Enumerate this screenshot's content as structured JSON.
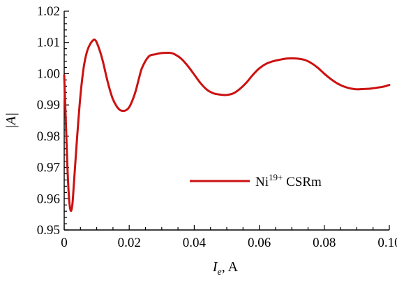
{
  "chart_data": {
    "type": "line",
    "title": "",
    "xlabel": {
      "symbol": "I",
      "subscript": "e",
      "unit": ", A"
    },
    "ylabel": "|A|",
    "xlim": [
      0,
      0.1
    ],
    "ylim": [
      0.95,
      1.02
    ],
    "xticks": [
      0,
      0.02,
      0.04,
      0.06,
      0.08,
      0.1
    ],
    "xtick_labels": [
      "0",
      "0.02",
      "0.04",
      "0.06",
      "0.08",
      "0.10"
    ],
    "yticks": [
      0.95,
      0.96,
      0.97,
      0.98,
      0.99,
      1.0,
      1.01,
      1.02
    ],
    "ytick_labels": [
      "0.95",
      "0.96",
      "0.97",
      "0.98",
      "0.99",
      "1.00",
      "1.01",
      "1.02"
    ],
    "grid": false,
    "legend_position": "center-right",
    "series": [
      {
        "name": "Ni19+ CSRm",
        "legend_base": "Ni",
        "legend_superscript": "19+",
        "legend_suffix": " CSRm",
        "color": "#cc1111",
        "x": [
          0,
          0.0005,
          0.001,
          0.0015,
          0.002,
          0.0025,
          0.003,
          0.004,
          0.005,
          0.006,
          0.007,
          0.008,
          0.009,
          0.0095,
          0.01,
          0.011,
          0.012,
          0.013,
          0.014,
          0.015,
          0.016,
          0.017,
          0.018,
          0.019,
          0.02,
          0.021,
          0.022,
          0.023,
          0.024,
          0.026,
          0.028,
          0.03,
          0.032,
          0.033,
          0.034,
          0.036,
          0.038,
          0.04,
          0.042,
          0.044,
          0.046,
          0.048,
          0.049,
          0.05,
          0.052,
          0.054,
          0.056,
          0.058,
          0.06,
          0.062,
          0.064,
          0.066,
          0.068,
          0.07,
          0.072,
          0.074,
          0.076,
          0.078,
          0.08,
          0.082,
          0.084,
          0.086,
          0.088,
          0.09,
          0.092,
          0.094,
          0.096,
          0.098,
          0.1
        ],
        "y": [
          0.9995,
          0.985,
          0.97,
          0.96,
          0.9562,
          0.958,
          0.965,
          0.98,
          0.993,
          1.002,
          1.007,
          1.0095,
          1.0108,
          1.0108,
          1.01,
          1.0072,
          1.0035,
          0.999,
          0.995,
          0.9918,
          0.9898,
          0.9885,
          0.9881,
          0.9883,
          0.9893,
          0.9915,
          0.9945,
          0.9985,
          1.002,
          1.0055,
          1.0062,
          1.0066,
          1.0067,
          1.0066,
          1.0062,
          1.0048,
          1.0025,
          0.9997,
          0.9969,
          0.9948,
          0.9937,
          0.9933,
          0.9932,
          0.9932,
          0.9937,
          0.9951,
          0.9971,
          0.9996,
          1.0017,
          1.0031,
          1.0039,
          1.0044,
          1.0048,
          1.0049,
          1.0048,
          1.0044,
          1.0034,
          1.0019,
          1.0,
          0.9983,
          0.9969,
          0.9959,
          0.9953,
          0.995,
          0.9951,
          0.9952,
          0.9955,
          0.9958,
          0.9964
        ]
      }
    ]
  }
}
